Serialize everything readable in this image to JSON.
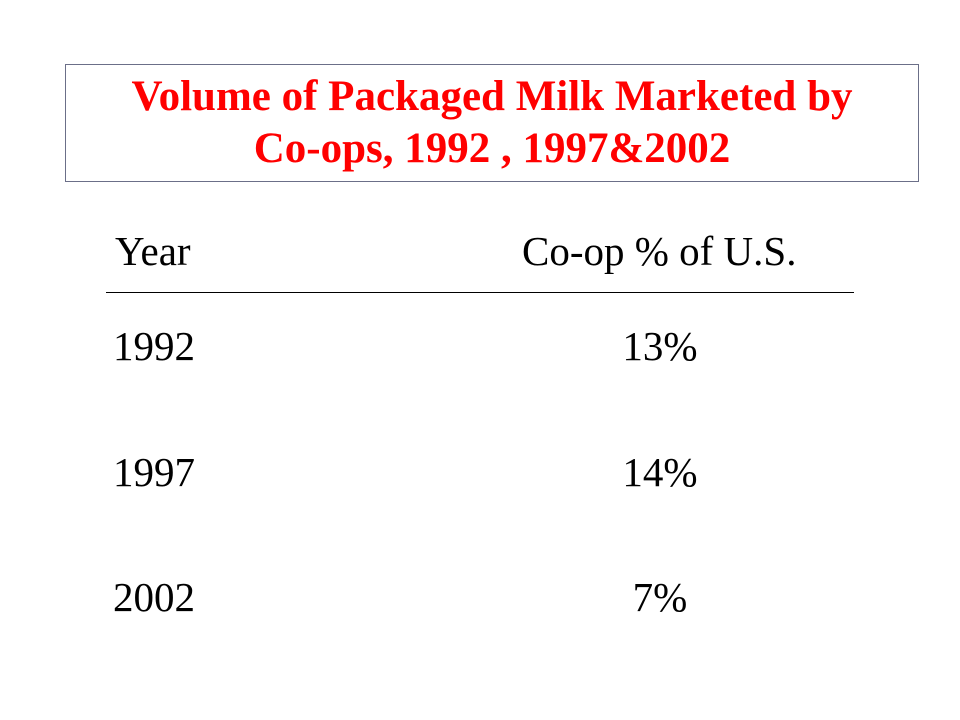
{
  "slide": {
    "title_lines": [
      "Volume of Packaged Milk Marketed by",
      "Co-ops, 1992 , 1997&2002"
    ]
  },
  "table": {
    "headers": {
      "year": "Year",
      "share": "Co-op % of U.S."
    },
    "rows": [
      {
        "year": "1992",
        "share": "13%"
      },
      {
        "year": "1997",
        "share": "14%"
      },
      {
        "year": "2002",
        "share": "7%"
      }
    ]
  }
}
